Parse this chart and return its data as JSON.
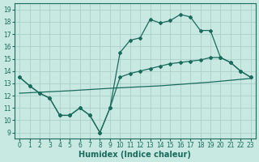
{
  "xlabel": "Humidex (Indice chaleur)",
  "bg_color": "#c8e8e2",
  "grid_color": "#a8cfc8",
  "line_color": "#1a6b5c",
  "xlim": [
    -0.5,
    23.5
  ],
  "ylim": [
    8.5,
    19.5
  ],
  "yticks": [
    9,
    10,
    11,
    12,
    13,
    14,
    15,
    16,
    17,
    18,
    19
  ],
  "xticks": [
    0,
    1,
    2,
    3,
    4,
    5,
    6,
    7,
    8,
    9,
    10,
    11,
    12,
    13,
    14,
    15,
    16,
    17,
    18,
    19,
    20,
    21,
    22,
    23
  ],
  "line_top_x": [
    0,
    1,
    2,
    3,
    4,
    5,
    6,
    7,
    8,
    9,
    10,
    11,
    12,
    13,
    14,
    15,
    16,
    17,
    18,
    19,
    20,
    21,
    22,
    23
  ],
  "line_top_y": [
    13.5,
    12.8,
    12.2,
    11.8,
    10.4,
    10.4,
    11.0,
    10.4,
    9.0,
    11.0,
    15.5,
    16.5,
    16.7,
    18.2,
    17.9,
    18.1,
    18.6,
    18.4,
    17.3,
    17.3,
    15.1,
    14.7,
    14.0,
    13.5
  ],
  "line_mid_x": [
    0,
    1,
    2,
    3,
    4,
    5,
    6,
    7,
    8,
    9,
    10,
    11,
    12,
    13,
    14,
    15,
    16,
    17,
    18,
    19,
    20,
    21,
    22,
    23
  ],
  "line_mid_y": [
    13.5,
    12.8,
    12.2,
    11.8,
    10.4,
    10.4,
    11.0,
    10.4,
    9.0,
    11.0,
    13.5,
    13.8,
    14.0,
    14.2,
    14.4,
    14.6,
    14.7,
    14.8,
    14.9,
    15.1,
    15.1,
    14.7,
    14.0,
    13.5
  ],
  "line_bot_x": [
    0,
    5,
    9,
    14,
    19,
    23
  ],
  "line_bot_y": [
    12.2,
    12.4,
    12.6,
    12.8,
    13.1,
    13.4
  ]
}
